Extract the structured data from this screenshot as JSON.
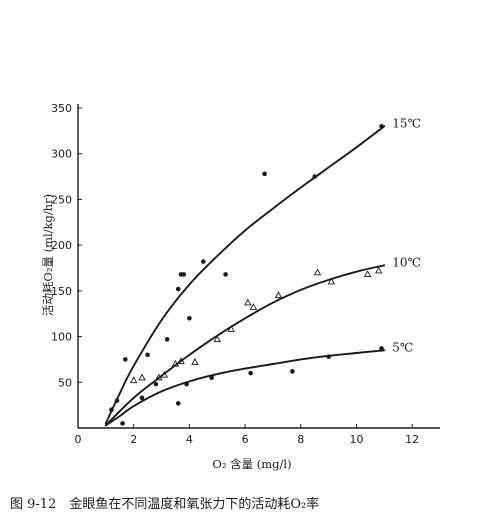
{
  "chart_data": {
    "type": "scatter",
    "caption": "图 9-12　金眼鱼在不同温度和氧张力下的活动耗O₂率",
    "xlabel": "O₂ 含量 (mg/l)",
    "ylabel": "活动耗O₂量 (ml/kg/hr)",
    "xlim": [
      0,
      13
    ],
    "ylim": [
      0,
      350
    ],
    "xticks": [
      0,
      2,
      4,
      6,
      8,
      10,
      12
    ],
    "yticks": [
      50,
      100,
      150,
      200,
      250,
      300,
      350
    ],
    "grid": false,
    "series": [
      {
        "name": "15℃",
        "marker": "dot",
        "points": [
          [
            1.7,
            75
          ],
          [
            2.5,
            80
          ],
          [
            3.2,
            97
          ],
          [
            3.6,
            152
          ],
          [
            3.7,
            168
          ],
          [
            3.8,
            168
          ],
          [
            4.0,
            120
          ],
          [
            4.5,
            182
          ],
          [
            5.3,
            168
          ],
          [
            6.7,
            278
          ],
          [
            8.5,
            275
          ],
          [
            10.9,
            330
          ]
        ],
        "curve": [
          [
            1.0,
            5
          ],
          [
            1.5,
            38
          ],
          [
            2.0,
            68
          ],
          [
            3.0,
            118
          ],
          [
            4.0,
            157
          ],
          [
            5.0,
            188
          ],
          [
            6.0,
            216
          ],
          [
            7.0,
            240
          ],
          [
            8.0,
            263
          ],
          [
            9.0,
            285
          ],
          [
            10.0,
            307
          ],
          [
            11.0,
            330
          ]
        ]
      },
      {
        "name": "10℃",
        "marker": "triangle",
        "points": [
          [
            2.0,
            52
          ],
          [
            2.3,
            55
          ],
          [
            2.9,
            55
          ],
          [
            3.1,
            58
          ],
          [
            3.5,
            70
          ],
          [
            3.7,
            73
          ],
          [
            4.2,
            72
          ],
          [
            5.0,
            97
          ],
          [
            5.5,
            108
          ],
          [
            6.1,
            137
          ],
          [
            6.3,
            132
          ],
          [
            7.2,
            145
          ],
          [
            8.6,
            170
          ],
          [
            9.1,
            160
          ],
          [
            10.4,
            168
          ],
          [
            10.8,
            172
          ]
        ],
        "curve": [
          [
            1.0,
            3
          ],
          [
            2.0,
            33
          ],
          [
            3.0,
            57
          ],
          [
            4.0,
            80
          ],
          [
            5.0,
            101
          ],
          [
            6.0,
            120
          ],
          [
            7.0,
            137
          ],
          [
            8.0,
            151
          ],
          [
            9.0,
            162
          ],
          [
            10.0,
            171
          ],
          [
            11.0,
            178
          ]
        ]
      },
      {
        "name": "5℃",
        "marker": "dot",
        "points": [
          [
            1.2,
            20
          ],
          [
            1.4,
            30
          ],
          [
            1.6,
            5
          ],
          [
            2.3,
            33
          ],
          [
            2.8,
            48
          ],
          [
            3.6,
            27
          ],
          [
            3.9,
            48
          ],
          [
            4.8,
            55
          ],
          [
            6.2,
            60
          ],
          [
            7.7,
            62
          ],
          [
            9.0,
            78
          ],
          [
            10.9,
            87
          ]
        ],
        "curve": [
          [
            1.0,
            3
          ],
          [
            1.5,
            13
          ],
          [
            2.0,
            24
          ],
          [
            3.0,
            40
          ],
          [
            4.0,
            51
          ],
          [
            5.0,
            59
          ],
          [
            6.0,
            65
          ],
          [
            7.0,
            70
          ],
          [
            8.0,
            75
          ],
          [
            9.0,
            79
          ],
          [
            10.0,
            82
          ],
          [
            11.0,
            85
          ]
        ]
      }
    ]
  }
}
